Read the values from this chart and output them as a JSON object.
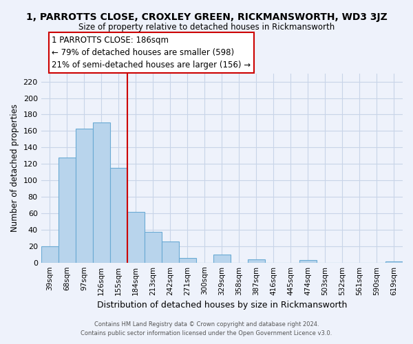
{
  "title": "1, PARROTTS CLOSE, CROXLEY GREEN, RICKMANSWORTH, WD3 3JZ",
  "subtitle": "Size of property relative to detached houses in Rickmansworth",
  "xlabel": "Distribution of detached houses by size in Rickmansworth",
  "ylabel": "Number of detached properties",
  "bar_color": "#b8d4ec",
  "bar_edge_color": "#6aaad4",
  "vline_color": "#cc0000",
  "annotation_title": "1 PARROTTS CLOSE: 186sqm",
  "annotation_line1": "← 79% of detached houses are smaller (598)",
  "annotation_line2": "21% of semi-detached houses are larger (156) →",
  "categories": [
    "39sqm",
    "68sqm",
    "97sqm",
    "126sqm",
    "155sqm",
    "184sqm",
    "213sqm",
    "242sqm",
    "271sqm",
    "300sqm",
    "329sqm",
    "358sqm",
    "387sqm",
    "416sqm",
    "445sqm",
    "474sqm",
    "503sqm",
    "532sqm",
    "561sqm",
    "590sqm",
    "619sqm"
  ],
  "values": [
    20,
    128,
    163,
    170,
    115,
    62,
    37,
    26,
    6,
    0,
    10,
    0,
    4,
    0,
    0,
    3,
    0,
    0,
    0,
    0,
    1
  ],
  "ylim": [
    0,
    230
  ],
  "yticks": [
    0,
    20,
    40,
    60,
    80,
    100,
    120,
    140,
    160,
    180,
    200,
    220
  ],
  "footnote1": "Contains HM Land Registry data © Crown copyright and database right 2024.",
  "footnote2": "Contains public sector information licensed under the Open Government Licence v3.0.",
  "bg_color": "#eef2fb",
  "grid_color": "#c8d4e8"
}
